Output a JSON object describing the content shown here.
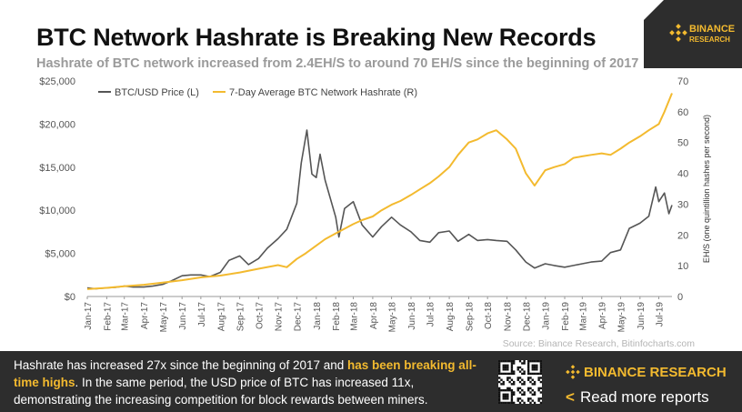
{
  "header": {
    "title": "BTC Network Hashrate is Breaking New Records",
    "subtitle": "Hashrate of BTC network increased from 2.4EH/S to around 70 EH/S since the beginning of 2017",
    "logo_line1": "BINANCE",
    "logo_line2": "RESEARCH"
  },
  "colors": {
    "price_series": "#555555",
    "hashrate_series": "#f3ba2f",
    "brand_yellow": "#f3ba2f",
    "logo_bg": "#2d2d2d",
    "footer_bg": "#2d2d2d"
  },
  "chart_data": {
    "type": "line",
    "title": "BTC Network Hashrate is Breaking New Records",
    "subtitle": "Hashrate of BTC network increased from 2.4EH/S to around 70 EH/S since the beginning of 2017",
    "ylabel_right": "EH/S (one quintillion hashes per second)",
    "grid": false,
    "legend_position": "top-left",
    "x_ticks": [
      "Jan-17",
      "Feb-17",
      "Mar-17",
      "Apr-17",
      "May-17",
      "Jun-17",
      "Jul-17",
      "Aug-17",
      "Sep-17",
      "Oct-17",
      "Nov-17",
      "Dec-17",
      "Jan-18",
      "Feb-18",
      "Mar-18",
      "Apr-18",
      "May-18",
      "Jun-18",
      "Jul-18",
      "Aug-18",
      "Sep-18",
      "Oct-18",
      "Nov-18",
      "Dec-18",
      "Jan-19",
      "Feb-19",
      "Mar-19",
      "Apr-19",
      "May-19",
      "Jun-19",
      "Jul-19"
    ],
    "y_left": {
      "min": 0,
      "max": 25000,
      "ticks": [
        0,
        5000,
        10000,
        15000,
        20000,
        25000
      ],
      "tick_labels": [
        "$0",
        "$5,000",
        "$10,000",
        "$15,000",
        "$20,000",
        "$25,000"
      ]
    },
    "y_right": {
      "min": 0,
      "max": 70,
      "ticks": [
        0,
        10,
        20,
        30,
        40,
        50,
        60,
        70
      ],
      "tick_labels": [
        "0",
        "10",
        "20",
        "30",
        "40",
        "50",
        "60",
        "70"
      ]
    },
    "series": [
      {
        "name": "BTC/USD Price (L)",
        "axis": "left",
        "x": [
          "2017-01-01",
          "2017-01-15",
          "2017-02-01",
          "2017-02-15",
          "2017-03-01",
          "2017-03-15",
          "2017-04-01",
          "2017-04-15",
          "2017-05-01",
          "2017-05-15",
          "2017-06-01",
          "2017-06-15",
          "2017-07-01",
          "2017-07-15",
          "2017-08-01",
          "2017-08-15",
          "2017-09-01",
          "2017-09-15",
          "2017-10-01",
          "2017-10-15",
          "2017-11-01",
          "2017-11-15",
          "2017-12-01",
          "2017-12-08",
          "2017-12-17",
          "2017-12-25",
          "2018-01-01",
          "2018-01-07",
          "2018-01-15",
          "2018-02-01",
          "2018-02-06",
          "2018-02-15",
          "2018-03-01",
          "2018-03-15",
          "2018-04-01",
          "2018-04-15",
          "2018-05-01",
          "2018-05-15",
          "2018-06-01",
          "2018-06-15",
          "2018-07-01",
          "2018-07-15",
          "2018-08-01",
          "2018-08-15",
          "2018-09-01",
          "2018-09-15",
          "2018-10-01",
          "2018-10-15",
          "2018-11-01",
          "2018-11-15",
          "2018-12-01",
          "2018-12-15",
          "2019-01-01",
          "2019-01-15",
          "2019-02-01",
          "2019-02-15",
          "2019-03-01",
          "2019-03-15",
          "2019-04-01",
          "2019-04-15",
          "2019-05-01",
          "2019-05-15",
          "2019-06-01",
          "2019-06-15",
          "2019-06-26",
          "2019-07-01",
          "2019-07-10",
          "2019-07-17",
          "2019-07-22"
        ],
        "values": [
          1000,
          900,
          1000,
          1050,
          1200,
          1100,
          1100,
          1200,
          1400,
          1800,
          2400,
          2500,
          2500,
          2300,
          2800,
          4200,
          4700,
          3700,
          4400,
          5600,
          6700,
          7800,
          10800,
          15500,
          19300,
          14200,
          13800,
          16500,
          13500,
          9200,
          6900,
          10200,
          11000,
          8300,
          6900,
          8100,
          9200,
          8300,
          7500,
          6500,
          6300,
          7400,
          7600,
          6400,
          7200,
          6500,
          6600,
          6500,
          6400,
          5400,
          4000,
          3300,
          3800,
          3600,
          3400,
          3600,
          3800,
          4000,
          4100,
          5100,
          5400,
          7900,
          8500,
          9300,
          12700,
          11000,
          12000,
          9600,
          10600
        ]
      },
      {
        "name": "7-Day Average BTC Network Hashrate (R)",
        "axis": "right",
        "x": [
          "2017-01-01",
          "2017-02-01",
          "2017-03-01",
          "2017-04-01",
          "2017-05-01",
          "2017-06-01",
          "2017-07-01",
          "2017-08-01",
          "2017-09-01",
          "2017-10-01",
          "2017-11-01",
          "2017-11-15",
          "2017-12-01",
          "2017-12-15",
          "2018-01-01",
          "2018-01-15",
          "2018-02-01",
          "2018-02-15",
          "2018-03-01",
          "2018-03-15",
          "2018-04-01",
          "2018-04-15",
          "2018-05-01",
          "2018-05-15",
          "2018-06-01",
          "2018-06-15",
          "2018-07-01",
          "2018-07-15",
          "2018-08-01",
          "2018-08-15",
          "2018-09-01",
          "2018-09-15",
          "2018-10-01",
          "2018-10-15",
          "2018-11-01",
          "2018-11-15",
          "2018-12-01",
          "2018-12-15",
          "2019-01-01",
          "2019-01-15",
          "2019-02-01",
          "2019-02-15",
          "2019-03-01",
          "2019-03-15",
          "2019-04-01",
          "2019-04-15",
          "2019-05-01",
          "2019-05-15",
          "2019-06-01",
          "2019-06-15",
          "2019-07-01",
          "2019-07-10",
          "2019-07-22"
        ],
        "values": [
          2.4,
          2.8,
          3.3,
          3.8,
          4.5,
          5.3,
          6.2,
          6.8,
          7.8,
          9.0,
          10.2,
          9.5,
          12.2,
          14.0,
          16.5,
          18.6,
          20.5,
          22.0,
          23.5,
          24.8,
          26.0,
          28.0,
          29.8,
          31.0,
          33.0,
          34.8,
          36.8,
          39.0,
          42.0,
          46.0,
          50.0,
          51.0,
          53.0,
          54.0,
          51.0,
          48.0,
          40.0,
          36.0,
          41.0,
          42.0,
          43.0,
          45.0,
          45.5,
          46.0,
          46.5,
          46.0,
          48.0,
          50.0,
          52.0,
          54.0,
          56.0,
          60.0,
          66.0
        ]
      }
    ],
    "source": "Source: Binance Research, Bitinfocharts.com"
  },
  "footer": {
    "text_part1": "Hashrate has increased 27x since the beginning of 2017 and ",
    "text_highlight": "has been breaking all-time highs",
    "text_part2": ". In the same period, the USD price of BTC has increased 11x, demonstrating the increasing competition for block rewards between miners.",
    "brand": "BINANCE RESEARCH",
    "read_more": "Read more reports",
    "read_more_icon": "chevron-left-icon"
  }
}
